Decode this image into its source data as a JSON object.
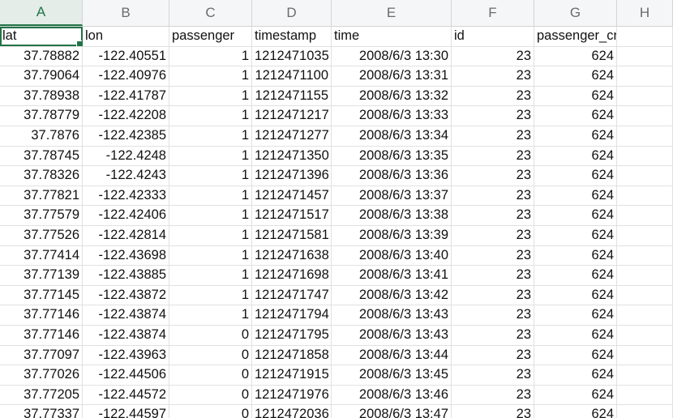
{
  "columns": [
    "A",
    "B",
    "C",
    "D",
    "E",
    "F",
    "G",
    "H"
  ],
  "header_row": [
    "lat",
    "lon",
    "passenger",
    "timestamp",
    "time",
    "id",
    "passenger_cnt",
    ""
  ],
  "rows": [
    [
      "37.78882",
      "-122.40551",
      "1",
      "1212471035",
      "2008/6/3 13:30",
      "23",
      "624",
      ""
    ],
    [
      "37.79064",
      "-122.40976",
      "1",
      "1212471100",
      "2008/6/3 13:31",
      "23",
      "624",
      ""
    ],
    [
      "37.78938",
      "-122.41787",
      "1",
      "1212471155",
      "2008/6/3 13:32",
      "23",
      "624",
      ""
    ],
    [
      "37.78779",
      "-122.42208",
      "1",
      "1212471217",
      "2008/6/3 13:33",
      "23",
      "624",
      ""
    ],
    [
      "37.7876",
      "-122.42385",
      "1",
      "1212471277",
      "2008/6/3 13:34",
      "23",
      "624",
      ""
    ],
    [
      "37.78745",
      "-122.4248",
      "1",
      "1212471350",
      "2008/6/3 13:35",
      "23",
      "624",
      ""
    ],
    [
      "37.78326",
      "-122.4243",
      "1",
      "1212471396",
      "2008/6/3 13:36",
      "23",
      "624",
      ""
    ],
    [
      "37.77821",
      "-122.42333",
      "1",
      "1212471457",
      "2008/6/3 13:37",
      "23",
      "624",
      ""
    ],
    [
      "37.77579",
      "-122.42406",
      "1",
      "1212471517",
      "2008/6/3 13:38",
      "23",
      "624",
      ""
    ],
    [
      "37.77526",
      "-122.42814",
      "1",
      "1212471581",
      "2008/6/3 13:39",
      "23",
      "624",
      ""
    ],
    [
      "37.77414",
      "-122.43698",
      "1",
      "1212471638",
      "2008/6/3 13:40",
      "23",
      "624",
      ""
    ],
    [
      "37.77139",
      "-122.43885",
      "1",
      "1212471698",
      "2008/6/3 13:41",
      "23",
      "624",
      ""
    ],
    [
      "37.77145",
      "-122.43872",
      "1",
      "1212471747",
      "2008/6/3 13:42",
      "23",
      "624",
      ""
    ],
    [
      "37.77146",
      "-122.43874",
      "1",
      "1212471794",
      "2008/6/3 13:43",
      "23",
      "624",
      ""
    ],
    [
      "37.77146",
      "-122.43874",
      "0",
      "1212471795",
      "2008/6/3 13:43",
      "23",
      "624",
      ""
    ],
    [
      "37.77097",
      "-122.43963",
      "0",
      "1212471858",
      "2008/6/3 13:44",
      "23",
      "624",
      ""
    ],
    [
      "37.77026",
      "-122.44506",
      "0",
      "1212471915",
      "2008/6/3 13:45",
      "23",
      "624",
      ""
    ],
    [
      "37.77205",
      "-122.44572",
      "0",
      "1212471976",
      "2008/6/3 13:46",
      "23",
      "624",
      ""
    ],
    [
      "37.77337",
      "-122.44597",
      "0",
      "1212472036",
      "2008/6/3 13:47",
      "23",
      "624",
      ""
    ]
  ],
  "selection": {
    "cell": "A1",
    "color": "#217346"
  }
}
